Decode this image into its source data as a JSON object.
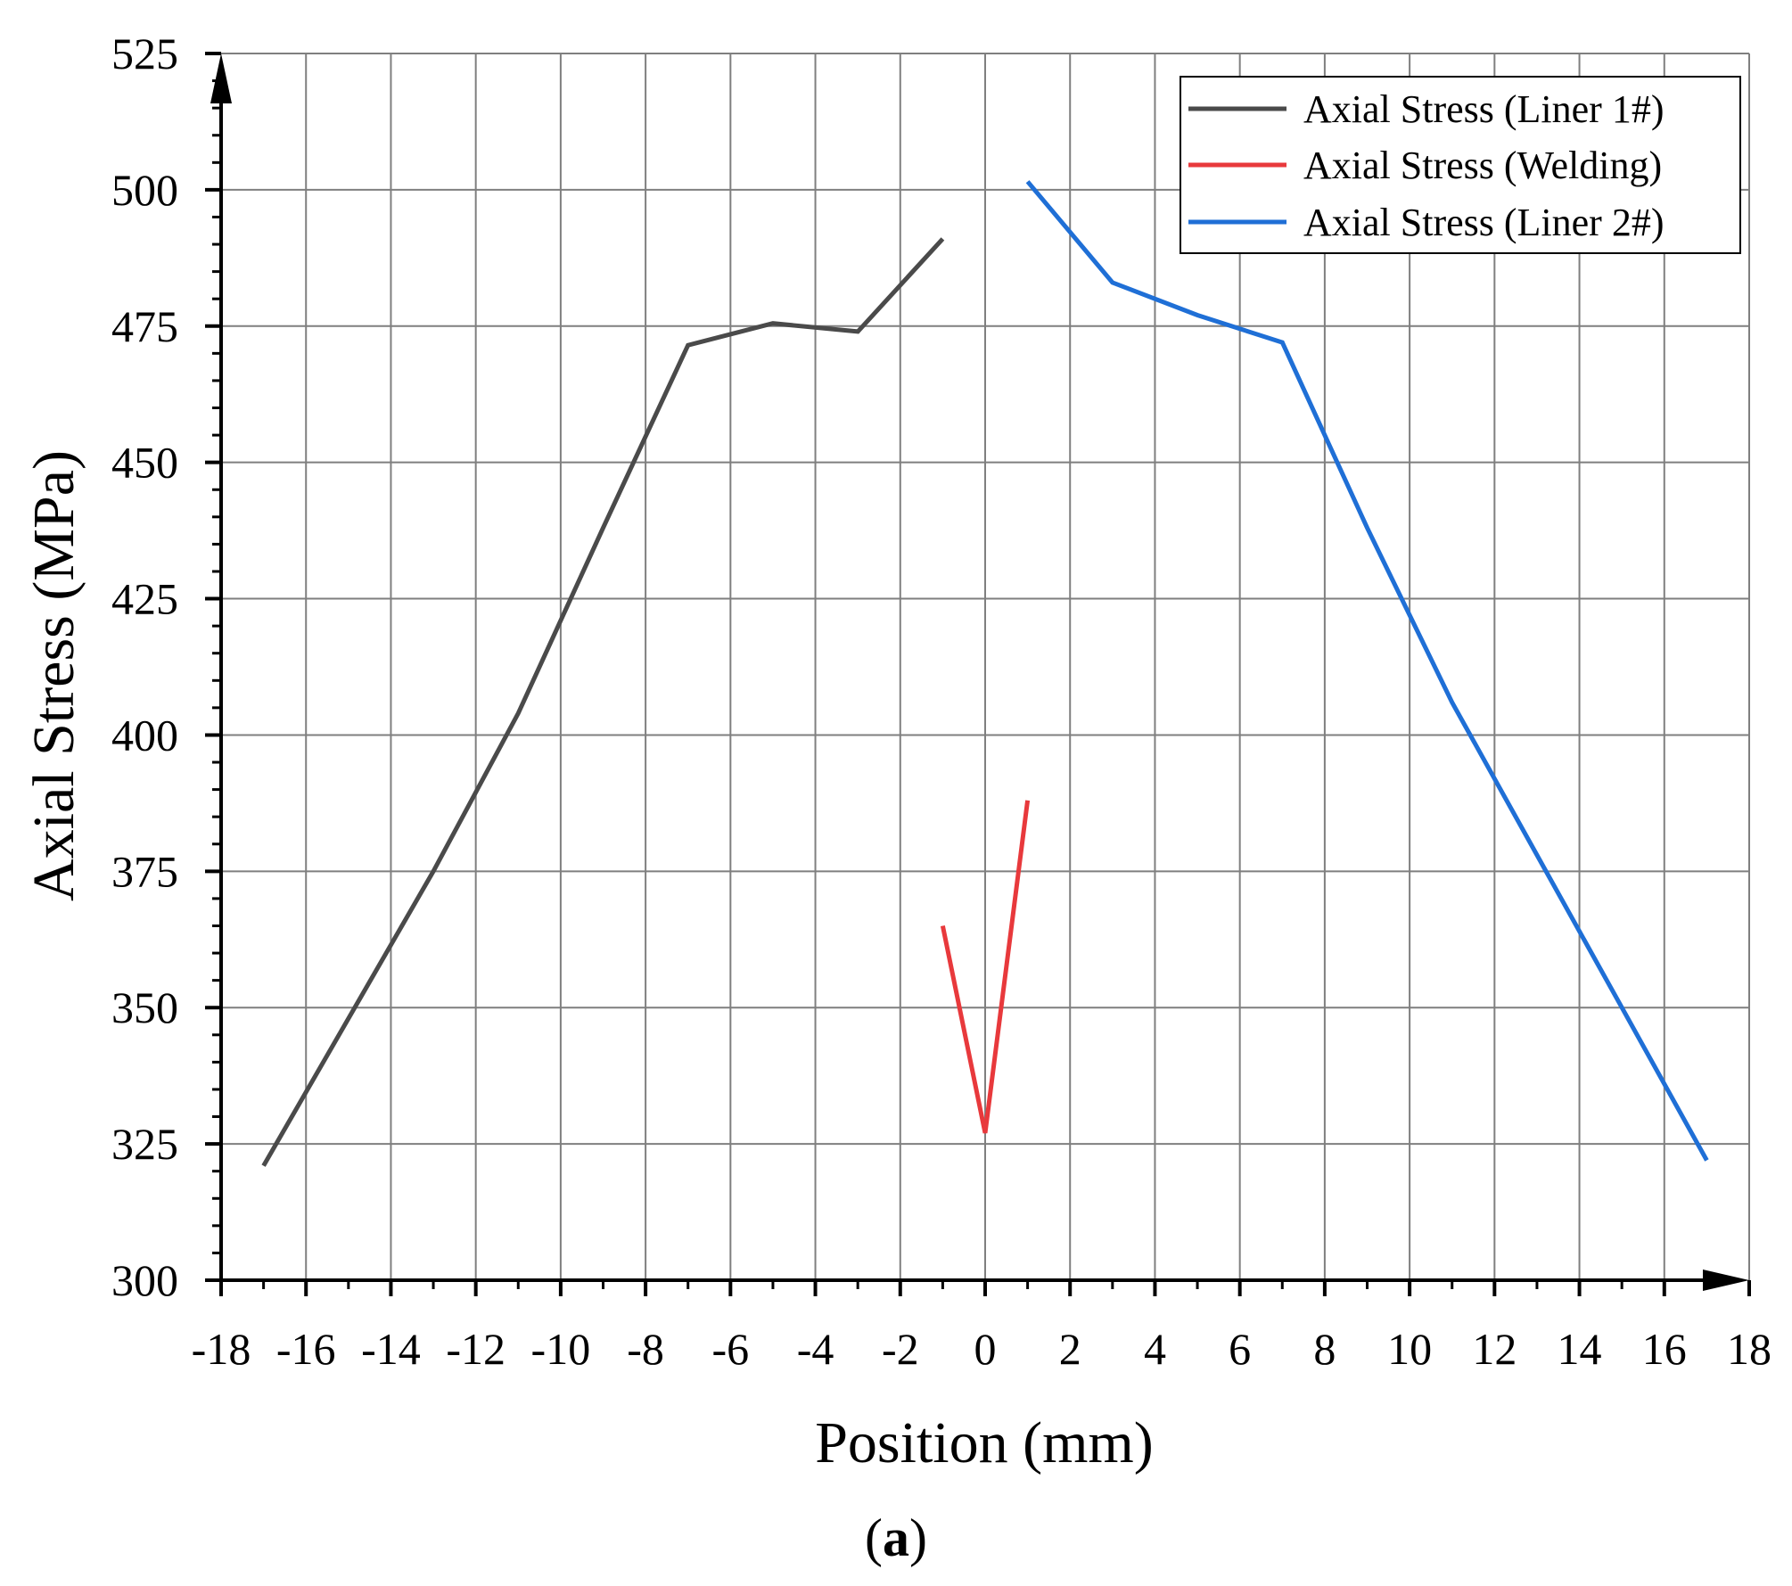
{
  "chart_data": {
    "type": "line",
    "xlabel": "Position (mm)",
    "ylabel": "Axial Stress (MPa)",
    "panel_label": {
      "open": "(",
      "letter": "a",
      "close": ")"
    },
    "xlim": [
      -18,
      18
    ],
    "ylim": [
      300,
      525
    ],
    "x_ticks": [
      -18,
      -16,
      -14,
      -12,
      -10,
      -8,
      -6,
      -4,
      -2,
      0,
      2,
      4,
      6,
      8,
      10,
      12,
      14,
      16,
      18
    ],
    "y_ticks": [
      300,
      325,
      350,
      375,
      400,
      425,
      450,
      475,
      500,
      525
    ],
    "grid": true,
    "legend_position": "top-right",
    "series": [
      {
        "name": "Axial Stress (Liner 1#)",
        "color": "#4a4a4a",
        "points": [
          [
            -17,
            321
          ],
          [
            -15,
            348
          ],
          [
            -13,
            375
          ],
          [
            -11,
            404
          ],
          [
            -9,
            438
          ],
          [
            -7,
            471.5
          ],
          [
            -5,
            475.5
          ],
          [
            -3,
            474
          ],
          [
            -1,
            491
          ]
        ]
      },
      {
        "name": "Axial Stress (Welding)",
        "color": "#e8393c",
        "points": [
          [
            -1,
            365
          ],
          [
            0,
            327
          ],
          [
            1,
            388
          ]
        ]
      },
      {
        "name": "Axial Stress (Liner 2#)",
        "color": "#1f6fd6",
        "points": [
          [
            1,
            501.5
          ],
          [
            3,
            483
          ],
          [
            5,
            477
          ],
          [
            7,
            472
          ],
          [
            9,
            438
          ],
          [
            11,
            406
          ],
          [
            13,
            378
          ],
          [
            15,
            350
          ],
          [
            17,
            322
          ]
        ]
      }
    ]
  }
}
